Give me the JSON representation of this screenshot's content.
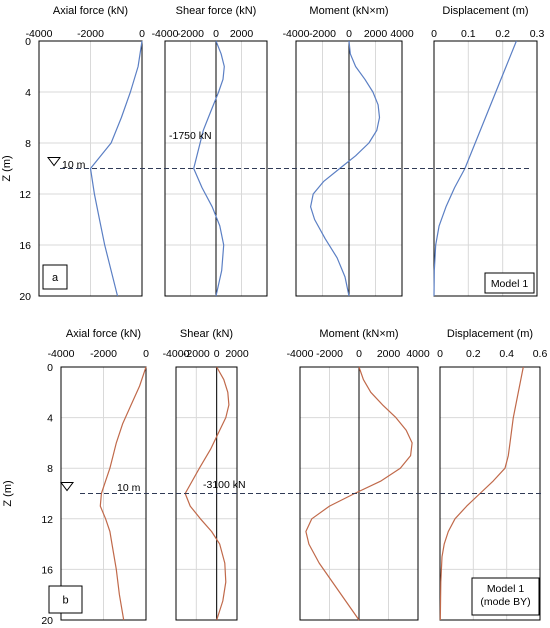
{
  "chart_data": [
    {
      "panel_label": "a",
      "model_label": [
        "Model 1"
      ],
      "type": "line",
      "color": "#5b7fc4",
      "ylabel": "Z (m)",
      "y_ticks": [
        0,
        4,
        8,
        12,
        16,
        20
      ],
      "ylim": [
        0,
        20
      ],
      "level_marker": {
        "z": 10,
        "label": "10 m"
      },
      "subplots": [
        {
          "title": "Axial force (kN)",
          "xlim": [
            -4000,
            0
          ],
          "x_ticks": [
            "-4000",
            "-2000",
            "0"
          ],
          "series": [
            {
              "x": [
                0,
                -150,
                -450,
                -800,
                -1200,
                -1600,
                -2000,
                -1850,
                -1650,
                -1450,
                -1200,
                -950
              ],
              "z": [
                0,
                2,
                4,
                6,
                8,
                9,
                10,
                12,
                14,
                16,
                18,
                20
              ]
            }
          ]
        },
        {
          "title": "Shear force (kN)",
          "xlim": [
            -4000,
            4000
          ],
          "x_ticks": [
            "-4000",
            "-2000",
            "0",
            "2000"
          ],
          "annotation": {
            "text": "-1750 kN",
            "x": -1750,
            "z": 10
          },
          "series": [
            {
              "x": [
                0,
                400,
                650,
                550,
                200,
                -400,
                -1000,
                -1750,
                -1100,
                -300,
                300,
                600,
                450,
                0
              ],
              "z": [
                0,
                1,
                2,
                3,
                4,
                5.5,
                7,
                10,
                11.5,
                13,
                14.5,
                16,
                18,
                20
              ]
            }
          ]
        },
        {
          "title": "Moment (kN×m)",
          "xlim": [
            -4000,
            4000
          ],
          "x_ticks": [
            "-4000",
            "-2000",
            "0",
            "2000",
            "4000"
          ],
          "series": [
            {
              "x": [
                0,
                100,
                500,
                1200,
                1800,
                2200,
                2300,
                2100,
                1500,
                500,
                -700,
                -1900,
                -2700,
                -2900,
                -2600,
                -1800,
                -900,
                -300,
                0
              ],
              "z": [
                0,
                1,
                2,
                3,
                4,
                5,
                6,
                7,
                8,
                9,
                10,
                11,
                12,
                13,
                14,
                15.5,
                17,
                18.5,
                20
              ]
            }
          ]
        },
        {
          "title": "Displacement (m)",
          "xlim": [
            0,
            0.3
          ],
          "x_ticks": [
            "0",
            "0.1",
            "0.2",
            "0.3"
          ],
          "series": [
            {
              "x": [
                0.24,
                0.21,
                0.18,
                0.15,
                0.12,
                0.09,
                0.06,
                0.035,
                0.015,
                0.005,
                0.001,
                0
              ],
              "z": [
                0,
                2,
                4,
                6,
                8,
                10,
                11.5,
                13,
                14.5,
                16,
                18,
                20
              ]
            }
          ]
        }
      ]
    },
    {
      "panel_label": "b",
      "model_label": [
        "Model 1",
        "(mode BY)"
      ],
      "type": "line",
      "color": "#c0694a",
      "ylabel": "Z (m)",
      "y_ticks": [
        0,
        4,
        8,
        12,
        16,
        20
      ],
      "ylim": [
        0,
        20
      ],
      "level_marker": {
        "z": 10,
        "label": "10 m"
      },
      "subplots": [
        {
          "title": "Axial force (kN)",
          "xlim": [
            -4000,
            0
          ],
          "x_ticks": [
            "-4000",
            "-2000",
            "0"
          ],
          "series": [
            {
              "x": [
                0,
                -300,
                -700,
                -1100,
                -1400,
                -1550,
                -1700,
                -1900,
                -2100,
                -2150,
                -1900,
                -1700,
                -1600,
                -1400,
                -1250,
                -1050
              ],
              "z": [
                0,
                1.5,
                3,
                4.5,
                6,
                7,
                8,
                9,
                10,
                11,
                12,
                13,
                14,
                16,
                18,
                20
              ]
            }
          ]
        },
        {
          "title": "Shear (kN)",
          "xlim": [
            -4000,
            2000
          ],
          "x_ticks": [
            "-4000",
            "-2000",
            "0",
            "2000"
          ],
          "annotation": {
            "text": "-3100 kN",
            "x": -3100,
            "z": 10
          },
          "series": [
            {
              "x": [
                0,
                700,
                1100,
                1200,
                900,
                300,
                -600,
                -1700,
                -3100,
                -2600,
                -1600,
                -500,
                300,
                800,
                900,
                600,
                0
              ],
              "z": [
                0,
                1,
                2,
                3,
                4,
                5,
                6.5,
                8,
                10,
                11,
                12,
                13,
                14,
                15.5,
                17,
                18.5,
                20
              ]
            }
          ]
        },
        {
          "title": "Moment (kN×m)",
          "xlim": [
            -4000,
            4000
          ],
          "x_ticks": [
            "-4000",
            "-2000",
            "0",
            "2000",
            "4000"
          ],
          "series": [
            {
              "x": [
                0,
                300,
                800,
                1600,
                2500,
                3200,
                3600,
                3500,
                2800,
                1500,
                -300,
                -2000,
                -3200,
                -3600,
                -3400,
                -2700,
                -1800,
                -900,
                0
              ],
              "z": [
                0,
                1,
                2,
                3,
                4,
                5,
                6,
                7,
                8,
                9,
                10,
                11,
                12,
                13,
                14,
                15.5,
                17,
                18.5,
                20
              ]
            }
          ]
        },
        {
          "title": "Displacement (m)",
          "xlim": [
            0,
            0.6
          ],
          "x_ticks": [
            "0",
            "0.2",
            "0.4",
            "0.6"
          ],
          "series": [
            {
              "x": [
                0.5,
                0.47,
                0.44,
                0.42,
                0.41,
                0.39,
                0.32,
                0.24,
                0.16,
                0.09,
                0.05,
                0.025,
                0.012,
                0.005,
                0.002
              ],
              "z": [
                0,
                2,
                4,
                6,
                7,
                8,
                9,
                10,
                11,
                12,
                13,
                14,
                15,
                17,
                20
              ]
            }
          ]
        }
      ]
    }
  ]
}
